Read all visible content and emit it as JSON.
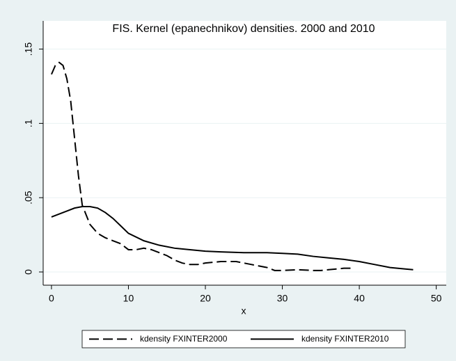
{
  "chart_data": {
    "type": "line",
    "title": "FIS. Kernel (epanechnikov) densities. 2000 and 2010",
    "xlabel": "x",
    "xlim": [
      -1.08,
      51.3
    ],
    "xticks": [
      0,
      10,
      20,
      30,
      40,
      50
    ],
    "ylim": [
      -0.0089,
      0.169
    ],
    "yticks": [
      0,
      {
        "value": 0.05,
        "label": ".05"
      },
      {
        "value": 0.1,
        "label": ".1"
      },
      {
        "value": 0.15,
        "label": ".15"
      }
    ],
    "grid": true,
    "series": [
      {
        "name": "kdensity FXINTER2000",
        "color": "#000000",
        "dash": "dashed",
        "x": [
          0,
          0.5,
          1,
          1.5,
          2,
          2.5,
          3,
          3.5,
          4,
          5,
          6,
          7,
          8,
          9,
          10,
          11,
          12,
          13,
          14,
          15,
          16,
          17,
          18,
          19,
          20,
          22,
          24,
          26,
          28,
          29,
          30,
          32,
          34,
          35,
          36,
          37,
          38,
          39
        ],
        "values": [
          0.133,
          0.139,
          0.141,
          0.139,
          0.13,
          0.115,
          0.09,
          0.065,
          0.045,
          0.032,
          0.026,
          0.023,
          0.021,
          0.019,
          0.015,
          0.015,
          0.016,
          0.015,
          0.013,
          0.011,
          0.008,
          0.006,
          0.005,
          0.005,
          0.006,
          0.007,
          0.007,
          0.005,
          0.003,
          0.001,
          0.001,
          0.0015,
          0.001,
          0.001,
          0.0015,
          0.002,
          0.0025,
          0.0025
        ]
      },
      {
        "name": "kdensity FXINTER2010",
        "color": "#000000",
        "dash": "solid",
        "x": [
          0,
          1,
          2,
          3,
          4,
          5,
          6,
          7,
          8,
          9,
          10,
          12,
          14,
          16,
          18,
          20,
          22,
          25,
          28,
          30,
          32,
          34,
          36,
          38,
          40,
          42,
          44,
          46,
          47
        ],
        "values": [
          0.037,
          0.039,
          0.041,
          0.043,
          0.044,
          0.044,
          0.043,
          0.04,
          0.036,
          0.031,
          0.026,
          0.021,
          0.018,
          0.016,
          0.015,
          0.014,
          0.0135,
          0.013,
          0.013,
          0.0125,
          0.012,
          0.0105,
          0.0095,
          0.0085,
          0.007,
          0.005,
          0.003,
          0.002,
          0.0015
        ]
      }
    ]
  }
}
